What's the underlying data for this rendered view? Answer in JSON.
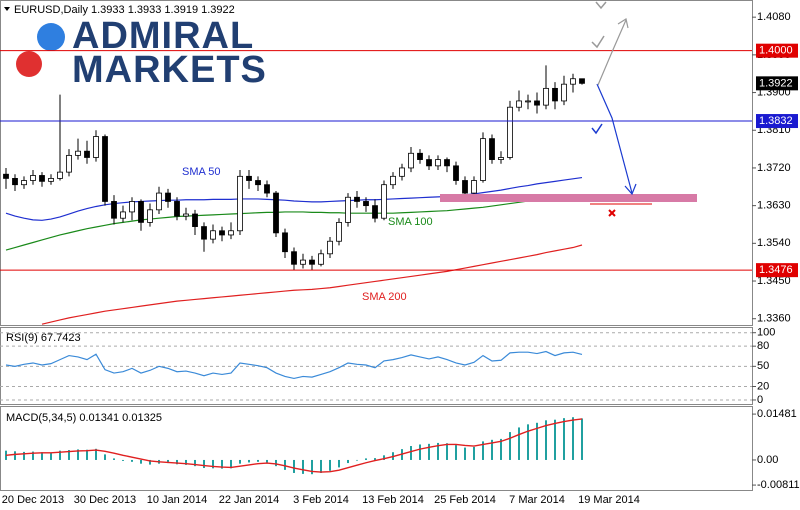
{
  "logo": {
    "line1": "ADMIRAL",
    "line2": "MARKETS"
  },
  "chart_data": [
    {
      "type": "candlestick",
      "title": "EURUSD,Daily 1.3933 1.3933 1.3919 1.3922",
      "categories": [
        null,
        null,
        null,
        "20 Dec 2013",
        null,
        null,
        null,
        null,
        null,
        null,
        null,
        "30 Dec 2013",
        null,
        null,
        null,
        null,
        null,
        null,
        null,
        "10 Jan 2014",
        null,
        null,
        null,
        null,
        null,
        null,
        null,
        "22 Jan 2014",
        null,
        null,
        null,
        null,
        null,
        null,
        null,
        "3 Feb 2014",
        null,
        null,
        null,
        null,
        null,
        null,
        null,
        "13 Feb 2014",
        null,
        null,
        null,
        null,
        null,
        null,
        null,
        "25 Feb 2014",
        null,
        null,
        null,
        null,
        null,
        null,
        null,
        "7 Mar 2014",
        null,
        null,
        null,
        null,
        null,
        null,
        null,
        "19 Mar 2014"
      ],
      "open": [
        1.3705,
        1.3695,
        1.368,
        1.369,
        1.3702,
        1.3688,
        1.3695,
        1.371,
        1.375,
        1.376,
        1.3745,
        1.3795,
        1.364,
        1.36,
        1.3615,
        1.364,
        1.359,
        1.362,
        1.366,
        1.364,
        1.3605,
        1.361,
        1.358,
        1.355,
        1.357,
        1.356,
        1.357,
        1.37,
        1.369,
        1.368,
        1.366,
        1.3565,
        1.352,
        1.349,
        1.35,
        1.349,
        1.3515,
        1.3545,
        1.359,
        1.365,
        1.364,
        1.363,
        1.36,
        1.368,
        1.37,
        1.372,
        1.3755,
        1.374,
        1.3725,
        1.374,
        1.3725,
        1.369,
        1.366,
        1.369,
        1.379,
        1.374,
        1.3745,
        1.3865,
        1.388,
        1.388,
        1.387,
        1.391,
        1.388,
        1.392,
        1.3933,
        null,
        null,
        null
      ],
      "high": [
        1.372,
        1.3705,
        1.37,
        1.3715,
        1.371,
        1.3705,
        1.3895,
        1.3765,
        1.379,
        1.3785,
        1.381,
        1.38,
        1.3655,
        1.363,
        1.365,
        1.3645,
        1.3635,
        1.3675,
        1.367,
        1.365,
        1.3625,
        1.362,
        1.359,
        1.3585,
        1.358,
        1.359,
        1.3715,
        1.3715,
        1.37,
        1.369,
        1.3665,
        1.3575,
        1.353,
        1.3515,
        1.351,
        1.3525,
        1.3555,
        1.36,
        1.366,
        1.3665,
        1.365,
        1.3645,
        1.369,
        1.371,
        1.373,
        1.377,
        1.3765,
        1.375,
        1.375,
        1.3745,
        1.3735,
        1.37,
        1.37,
        1.3805,
        1.38,
        1.376,
        1.388,
        1.3905,
        1.3895,
        1.39,
        1.3965,
        1.3925,
        1.394,
        1.3945,
        1.3933,
        null,
        null,
        null
      ],
      "low": [
        1.367,
        1.3665,
        1.367,
        1.368,
        1.3675,
        1.368,
        1.369,
        1.37,
        1.374,
        1.373,
        1.3735,
        1.363,
        1.3585,
        1.359,
        1.3595,
        1.357,
        1.358,
        1.361,
        1.3625,
        1.3595,
        1.3595,
        1.356,
        1.352,
        1.354,
        1.3545,
        1.355,
        1.356,
        1.367,
        1.3665,
        1.365,
        1.3555,
        1.3505,
        1.3475,
        1.348,
        1.3475,
        1.3485,
        1.3505,
        1.3535,
        1.358,
        1.3625,
        1.3615,
        1.359,
        1.3595,
        1.367,
        1.369,
        1.371,
        1.373,
        1.3715,
        1.3715,
        1.371,
        1.368,
        1.3645,
        1.3655,
        1.3685,
        1.373,
        1.373,
        1.374,
        1.3855,
        1.386,
        1.385,
        1.386,
        1.386,
        1.387,
        1.39,
        1.3919,
        null,
        null,
        null
      ],
      "close": [
        1.3695,
        1.368,
        1.369,
        1.3702,
        1.3688,
        1.3695,
        1.371,
        1.375,
        1.376,
        1.3745,
        1.3795,
        1.364,
        1.36,
        1.3615,
        1.364,
        1.359,
        1.362,
        1.366,
        1.364,
        1.3605,
        1.361,
        1.358,
        1.355,
        1.357,
        1.356,
        1.357,
        1.37,
        1.369,
        1.368,
        1.366,
        1.3565,
        1.352,
        1.349,
        1.35,
        1.349,
        1.3515,
        1.3545,
        1.359,
        1.365,
        1.364,
        1.363,
        1.36,
        1.368,
        1.37,
        1.372,
        1.3755,
        1.374,
        1.3725,
        1.374,
        1.3725,
        1.369,
        1.366,
        1.369,
        1.379,
        1.374,
        1.3745,
        1.3865,
        1.388,
        1.388,
        1.387,
        1.391,
        1.388,
        1.392,
        1.3933,
        1.3922,
        null,
        null,
        null
      ],
      "up_color": "#ffffff",
      "down_color": "#000000",
      "series": [
        {
          "name": "SMA 50",
          "color": "#1f2fd0",
          "values": [
            1.3612,
            1.3605,
            1.36,
            1.3596,
            1.3595,
            1.3598,
            1.3603,
            1.361,
            1.3617,
            1.3623,
            1.3628,
            1.3632,
            1.3635,
            1.3637,
            1.3639,
            1.364,
            1.3641,
            1.3642,
            1.3643,
            1.3643,
            1.3644,
            1.3644,
            1.3644,
            1.3645,
            1.3645,
            1.3645,
            1.3646,
            1.3646,
            1.3646,
            1.3645,
            1.3644,
            1.3643,
            1.3641,
            1.364,
            1.3639,
            1.3639,
            1.364,
            1.3641,
            1.3642,
            1.3643,
            1.3644,
            1.3644,
            1.3645,
            1.3646,
            1.3647,
            1.3648,
            1.3649,
            1.365,
            1.3651,
            1.3652,
            1.3654,
            1.3656,
            1.3658,
            1.3661,
            1.3664,
            1.3667,
            1.3671,
            1.3675,
            1.3678,
            1.3682,
            1.3685,
            1.3688,
            1.3691,
            1.3694,
            1.3697,
            null,
            null,
            null
          ]
        },
        {
          "name": "SMA 100",
          "color": "#1a8a1a",
          "values": [
            1.3524,
            1.353,
            1.3536,
            1.3542,
            1.3548,
            1.3554,
            1.356,
            1.3565,
            1.357,
            1.3575,
            1.3579,
            1.3583,
            1.3587,
            1.359,
            1.3593,
            1.3596,
            1.3598,
            1.36,
            1.3602,
            1.3604,
            1.3605,
            1.3606,
            1.3607,
            1.3608,
            1.3609,
            1.361,
            1.3611,
            1.3612,
            1.3613,
            1.3614,
            1.3614,
            1.3615,
            1.3615,
            1.3615,
            1.3614,
            1.3614,
            1.3613,
            1.3613,
            1.3612,
            1.3612,
            1.3612,
            1.3612,
            1.3612,
            1.3612,
            1.3613,
            1.3614,
            1.3615,
            1.3616,
            1.3617,
            1.3618,
            1.362,
            1.3622,
            1.3624,
            1.3626,
            1.3629,
            1.3632,
            1.3635,
            1.3638,
            1.3641,
            1.3644,
            1.3647,
            1.3649,
            1.3651,
            1.3653,
            1.3655,
            null,
            null,
            null
          ]
        },
        {
          "name": "SMA 200",
          "color": "#e02020",
          "values": [
            null,
            null,
            null,
            null,
            1.3347,
            1.3352,
            1.3357,
            1.3362,
            1.3366,
            1.337,
            1.3374,
            1.3378,
            1.3381,
            1.3384,
            1.3387,
            1.339,
            1.3393,
            1.3396,
            1.3399,
            1.3402,
            1.3404,
            1.3406,
            1.3408,
            1.341,
            1.3412,
            1.3414,
            1.3416,
            1.3418,
            1.342,
            1.3422,
            1.3424,
            1.3426,
            1.3428,
            1.3429,
            1.343,
            1.3432,
            1.3434,
            1.3437,
            1.344,
            1.3443,
            1.3446,
            1.3449,
            1.3452,
            1.3455,
            1.3458,
            1.3461,
            1.3464,
            1.3467,
            1.347,
            1.3473,
            1.3477,
            1.3481,
            1.3485,
            1.3489,
            1.3493,
            1.3497,
            1.3501,
            1.3505,
            1.3509,
            1.3513,
            1.3518,
            1.3522,
            1.3526,
            1.353,
            1.3536,
            null,
            null,
            null
          ]
        }
      ],
      "levels": [
        {
          "value": 1.4,
          "label": "1.4000",
          "color": "#e00000",
          "line": true
        },
        {
          "value": 1.3922,
          "label": "1.3922",
          "color": "#000000",
          "line": false
        },
        {
          "value": 1.3832,
          "label": "1.3832",
          "color": "#1a1ad0",
          "line": true
        },
        {
          "value": 1.3476,
          "label": "1.3476",
          "color": "#e00000",
          "line": true
        }
      ],
      "ylim": [
        1.3345,
        1.4121
      ],
      "yticks": [
        {
          "value": 1.408,
          "label": "1.4080"
        },
        {
          "value": 1.399,
          "label": "1.3990"
        },
        {
          "value": 1.39,
          "label": "1.3900"
        },
        {
          "value": 1.381,
          "label": "1.3810"
        },
        {
          "value": 1.372,
          "label": "1.3720"
        },
        {
          "value": 1.363,
          "label": "1.3630"
        },
        {
          "value": 1.354,
          "label": "1.3540"
        },
        {
          "value": 1.345,
          "label": "1.3450"
        },
        {
          "value": 1.336,
          "label": "1.3360"
        }
      ],
      "grid": false
    },
    {
      "type": "line",
      "title": "RSI(9) 67.7423",
      "color": "#3a8ad8",
      "values": [
        52,
        50,
        53,
        55,
        52,
        54,
        60,
        66,
        64,
        60,
        68,
        45,
        40,
        42,
        47,
        40,
        44,
        50,
        47,
        42,
        43,
        40,
        36,
        40,
        38,
        40,
        55,
        53,
        51,
        48,
        40,
        35,
        32,
        35,
        34,
        38,
        42,
        48,
        55,
        53,
        52,
        48,
        58,
        60,
        63,
        67,
        64,
        61,
        64,
        60,
        55,
        52,
        56,
        66,
        58,
        59,
        70,
        71,
        71,
        69,
        72,
        66,
        70,
        71,
        67.7423,
        null,
        null,
        null
      ],
      "ylim": [
        -6,
        107
      ],
      "yticks": [
        100,
        80,
        50,
        20,
        0
      ],
      "grid": true
    },
    {
      "type": "bar",
      "title": "MACD(5,34,5) 0.01341 0.01325",
      "color": "#20a0a0",
      "values": [
        0.003,
        0.0028,
        0.0026,
        0.0027,
        0.0025,
        0.0024,
        0.003,
        0.0032,
        0.0034,
        0.0033,
        0.0036,
        0.0018,
        0.0005,
        -0.0003,
        -0.0006,
        -0.0012,
        -0.0015,
        -0.0012,
        -0.001,
        -0.0014,
        -0.0016,
        -0.002,
        -0.0026,
        -0.0027,
        -0.0028,
        -0.0027,
        -0.0012,
        -0.0008,
        -0.0006,
        -0.0008,
        -0.002,
        -0.0032,
        -0.0042,
        -0.0045,
        -0.0046,
        -0.0042,
        -0.0035,
        -0.0024,
        -0.001,
        -0.0002,
        0.0005,
        0.0006,
        0.0015,
        0.0025,
        0.0035,
        0.0045,
        0.005,
        0.0052,
        0.0055,
        0.0054,
        0.0048,
        0.004,
        0.0042,
        0.006,
        0.0065,
        0.0068,
        0.009,
        0.0105,
        0.0115,
        0.012,
        0.0128,
        0.013,
        0.0135,
        0.0138,
        0.01341,
        null,
        null,
        null
      ],
      "line_color": "#e02020",
      "line_values": [
        0.0015,
        0.0018,
        0.002,
        0.0022,
        0.0023,
        0.0023,
        0.0025,
        0.0027,
        0.0029,
        0.003,
        0.0032,
        0.0028,
        0.0022,
        0.0015,
        0.0009,
        0.0003,
        -0.0003,
        -0.0006,
        -0.0008,
        -0.001,
        -0.0012,
        -0.0015,
        -0.0018,
        -0.0021,
        -0.0023,
        -0.0024,
        -0.002,
        -0.0016,
        -0.0012,
        -0.001,
        -0.0013,
        -0.0019,
        -0.0026,
        -0.0032,
        -0.0037,
        -0.0039,
        -0.0038,
        -0.0033,
        -0.0025,
        -0.0017,
        -0.0009,
        -0.0002,
        0.0004,
        0.0011,
        0.0019,
        0.0027,
        0.0035,
        0.0041,
        0.0046,
        0.005,
        0.005,
        0.0047,
        0.0045,
        0.005,
        0.0055,
        0.006,
        0.007,
        0.0082,
        0.0093,
        0.0102,
        0.0111,
        0.0118,
        0.0124,
        0.0129,
        0.01325,
        null,
        null,
        null
      ],
      "ylim": [
        -0.0097,
        0.0171
      ],
      "yticks": [
        0.01481,
        {
          "value": 0,
          "label": "0.00"
        },
        -0.00811
      ],
      "grid": false
    }
  ]
}
